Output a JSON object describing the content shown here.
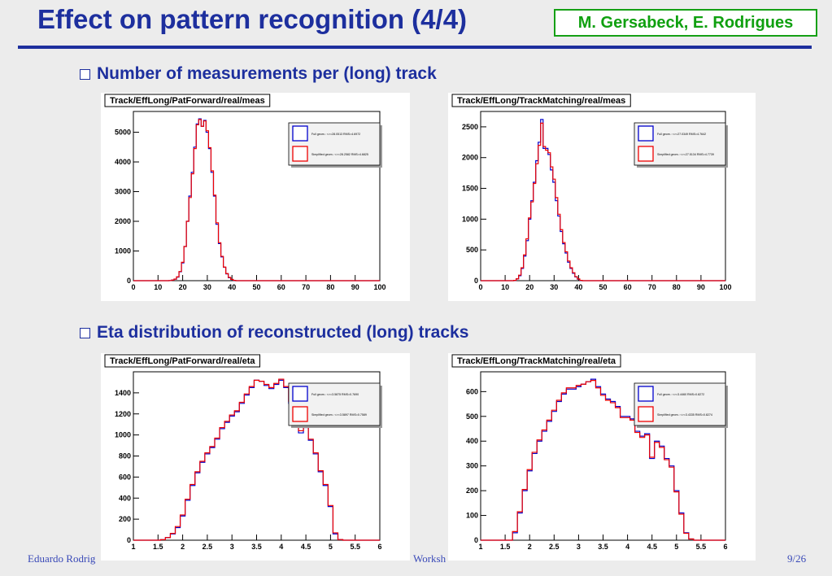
{
  "slide": {
    "title": "Effect on pattern recognition (4/4)",
    "authors": "M. Gersabeck, E. Rodrigues",
    "section1": "Number of measurements per (long) track",
    "section2": "Eta distribution of reconstructed (long) tracks",
    "footer_left": "Eduardo Rodrig",
    "footer_mid": "Worksh",
    "page": "9/26"
  },
  "colors": {
    "title": "#1d2f9e",
    "authors_green": "#10a010",
    "full": "#0000cc",
    "simplified": "#ee0000"
  },
  "chart_data": [
    {
      "type": "line",
      "title": "Track/EffLong/PatForward/real/meas",
      "xlim": [
        0,
        100
      ],
      "ylim": [
        0,
        5700
      ],
      "xticks": [
        0,
        10,
        20,
        30,
        40,
        50,
        60,
        70,
        80,
        90,
        100
      ],
      "yticks": [
        0,
        1000,
        2000,
        3000,
        4000,
        5000
      ],
      "grid": false,
      "legend_position": "top-right",
      "x": [
        15,
        16,
        17,
        18,
        19,
        20,
        21,
        22,
        23,
        24,
        25,
        26,
        27,
        28,
        29,
        30,
        31,
        32,
        33,
        34,
        35,
        36,
        37,
        38,
        39,
        40,
        41
      ],
      "series": [
        {
          "name": "Full geom.:  <>=28.0513 RMS=4.6972",
          "values": [
            5,
            20,
            50,
            120,
            300,
            600,
            1150,
            2000,
            2850,
            3650,
            4500,
            5280,
            5450,
            5200,
            5400,
            5000,
            4450,
            3650,
            2850,
            1900,
            1250,
            800,
            450,
            230,
            100,
            40,
            10
          ]
        },
        {
          "name": "Simplified geom.:  <>=28.2582 RMS=4.6825",
          "values": [
            5,
            20,
            55,
            130,
            310,
            620,
            1150,
            2000,
            2800,
            3600,
            4450,
            5250,
            5430,
            5200,
            5380,
            5050,
            4480,
            3700,
            2880,
            1950,
            1280,
            820,
            460,
            240,
            110,
            45,
            12
          ]
        }
      ]
    },
    {
      "type": "line",
      "title": "Track/EffLong/TrackMatching/real/meas",
      "xlim": [
        0,
        100
      ],
      "ylim": [
        0,
        2750
      ],
      "xticks": [
        0,
        10,
        20,
        30,
        40,
        50,
        60,
        70,
        80,
        90,
        100
      ],
      "yticks": [
        0,
        500,
        1000,
        1500,
        2000,
        2500
      ],
      "grid": false,
      "legend_position": "top-right",
      "x": [
        14,
        15,
        16,
        17,
        18,
        19,
        20,
        21,
        22,
        23,
        24,
        25,
        26,
        27,
        28,
        29,
        30,
        31,
        32,
        33,
        34,
        35,
        36,
        37,
        38,
        39,
        40,
        41
      ],
      "series": [
        {
          "name": "Full geom.:  <>=27.0349 RMS=4.7642",
          "values": [
            5,
            30,
            80,
            200,
            400,
            650,
            1000,
            1300,
            1600,
            1950,
            2250,
            2620,
            2150,
            2150,
            2050,
            1800,
            1600,
            1300,
            1050,
            800,
            600,
            450,
            300,
            200,
            120,
            60,
            25,
            5
          ]
        },
        {
          "name": "Simplified geom.:  <>=27.5134 RMS=4.7739",
          "values": [
            5,
            30,
            90,
            210,
            420,
            680,
            1020,
            1280,
            1580,
            1900,
            2200,
            2560,
            2180,
            2120,
            2080,
            1850,
            1650,
            1350,
            1080,
            830,
            620,
            470,
            320,
            210,
            130,
            65,
            28,
            6
          ]
        }
      ]
    },
    {
      "type": "line",
      "title": "Track/EffLong/PatForward/real/eta",
      "xlim": [
        1,
        6
      ],
      "ylim": [
        0,
        1600
      ],
      "xticks": [
        1,
        1.5,
        2,
        2.5,
        3,
        3.5,
        4,
        4.5,
        5,
        5.5,
        6
      ],
      "yticks": [
        0,
        200,
        400,
        600,
        800,
        1000,
        1200,
        1400
      ],
      "grid": false,
      "legend_position": "top-right",
      "x": [
        1.6,
        1.7,
        1.8,
        1.9,
        2.0,
        2.1,
        2.2,
        2.3,
        2.4,
        2.5,
        2.6,
        2.7,
        2.8,
        2.9,
        3.0,
        3.1,
        3.2,
        3.3,
        3.4,
        3.5,
        3.6,
        3.7,
        3.8,
        3.9,
        4.0,
        4.1,
        4.2,
        4.3,
        4.4,
        4.5,
        4.6,
        4.7,
        4.8,
        4.9,
        5.0,
        5.1,
        5.2
      ],
      "series": [
        {
          "name": "Full geom.:  <>=3.5875 RMS=0.7690",
          "values": [
            5,
            25,
            60,
            120,
            230,
            380,
            520,
            640,
            740,
            820,
            880,
            960,
            1060,
            1120,
            1180,
            1220,
            1300,
            1380,
            1450,
            1520,
            1510,
            1470,
            1440,
            1480,
            1520,
            1450,
            1300,
            1150,
            1020,
            1070,
            950,
            820,
            650,
            520,
            320,
            60,
            5
          ]
        },
        {
          "name": "Simplified geom.:  <>=3.5897 RMS=0.7589",
          "values": [
            5,
            25,
            65,
            130,
            240,
            390,
            530,
            650,
            750,
            830,
            890,
            970,
            1070,
            1130,
            1190,
            1230,
            1310,
            1390,
            1460,
            1520,
            1510,
            1480,
            1450,
            1490,
            1530,
            1460,
            1320,
            1170,
            1040,
            1080,
            960,
            830,
            660,
            530,
            330,
            70,
            6
          ]
        }
      ]
    },
    {
      "type": "line",
      "title": "Track/EffLong/TrackMatching/real/eta",
      "xlim": [
        1,
        6
      ],
      "ylim": [
        0,
        680
      ],
      "xticks": [
        1,
        1.5,
        2,
        2.5,
        3,
        3.5,
        4,
        4.5,
        5,
        5.5,
        6
      ],
      "yticks": [
        0,
        100,
        200,
        300,
        400,
        500,
        600
      ],
      "grid": false,
      "legend_position": "top-right",
      "x": [
        1.7,
        1.8,
        1.9,
        2.0,
        2.1,
        2.2,
        2.3,
        2.4,
        2.5,
        2.6,
        2.7,
        2.8,
        2.9,
        3.0,
        3.1,
        3.2,
        3.3,
        3.4,
        3.5,
        3.6,
        3.7,
        3.8,
        3.9,
        4.0,
        4.1,
        4.2,
        4.3,
        4.4,
        4.5,
        4.6,
        4.7,
        4.8,
        4.9,
        5.0,
        5.1,
        5.2,
        5.3
      ],
      "series": [
        {
          "name": "Full geom.:  <>=3.4460 RMS=0.8272",
          "values": [
            30,
            110,
            200,
            280,
            350,
            400,
            440,
            480,
            520,
            560,
            590,
            610,
            610,
            620,
            630,
            640,
            650,
            620,
            590,
            570,
            560,
            540,
            500,
            500,
            490,
            440,
            420,
            430,
            330,
            400,
            380,
            330,
            300,
            200,
            110,
            30,
            5
          ]
        },
        {
          "name": "Simplified geom.:  <>=3.4335 RMS=0.8274",
          "values": [
            35,
            115,
            205,
            285,
            355,
            405,
            445,
            485,
            525,
            565,
            595,
            615,
            615,
            625,
            630,
            640,
            645,
            615,
            585,
            565,
            555,
            535,
            495,
            495,
            485,
            435,
            415,
            425,
            335,
            395,
            375,
            325,
            295,
            195,
            105,
            28,
            5
          ]
        }
      ]
    }
  ]
}
